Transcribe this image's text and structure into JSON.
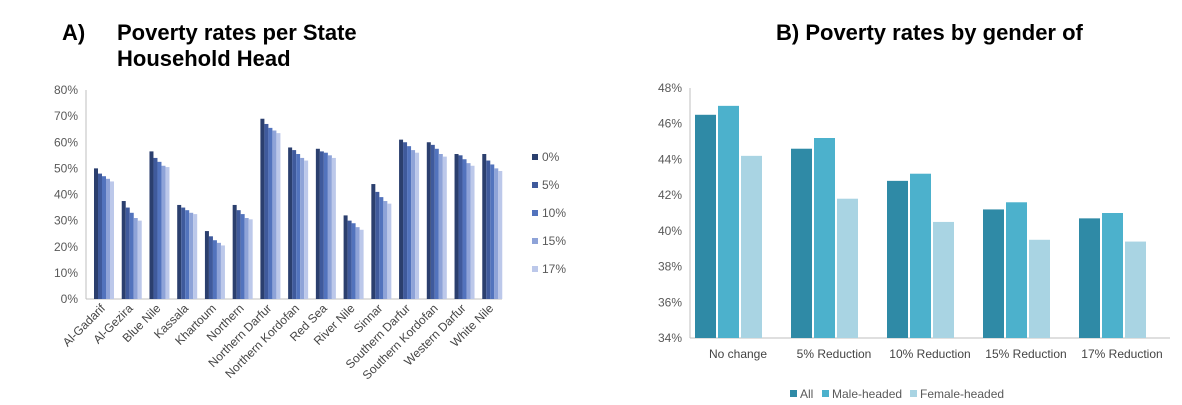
{
  "headings": {
    "a_label": "A)",
    "a_line1": "Poverty rates per State",
    "a_line2": "Household Head",
    "b_title": "B) Poverty rates by gender of"
  },
  "chart_data": [
    {
      "type": "bar",
      "categories": [
        "Al-Gadarif",
        "Al-Gezira",
        "Blue Nile",
        "Kassala",
        "Khartoum",
        "Northern",
        "Northern Darfur",
        "Northern Kordofan",
        "Red Sea",
        "River Nile",
        "Sinnar",
        "Southern Darfur",
        "Southern Kordofan",
        "Western Darfur",
        "White Nile"
      ],
      "series": [
        {
          "name": "0%",
          "color": "#2b3f6e",
          "values": [
            50,
            37.5,
            56.5,
            36,
            26,
            36,
            69,
            58,
            57.5,
            32,
            44,
            61,
            60,
            55.5,
            55.5
          ]
        },
        {
          "name": "5%",
          "color": "#3f5a9c",
          "values": [
            48,
            35,
            54,
            35,
            24,
            34,
            67,
            57,
            56.5,
            30,
            41,
            60,
            59,
            55,
            53
          ]
        },
        {
          "name": "10%",
          "color": "#5273bd",
          "values": [
            47,
            33,
            52.5,
            34,
            22.5,
            32.5,
            65.5,
            55.5,
            56,
            29,
            39,
            58.5,
            57.5,
            53.5,
            51.5
          ]
        },
        {
          "name": "15%",
          "color": "#8ea3d8",
          "values": [
            46,
            31,
            51,
            33,
            21.5,
            31,
            64.5,
            54,
            55,
            27.5,
            37.5,
            57,
            55.5,
            52,
            50
          ]
        },
        {
          "name": "17%",
          "color": "#bcc8ea",
          "values": [
            45,
            30,
            50.5,
            32.5,
            20.5,
            30.5,
            63.5,
            53,
            54,
            26.5,
            36.5,
            56,
            54.5,
            51,
            49
          ]
        }
      ],
      "yticks": [
        "0%",
        "10%",
        "20%",
        "30%",
        "40%",
        "50%",
        "60%",
        "70%",
        "80%"
      ],
      "ylim": [
        0,
        80
      ],
      "legend": "right",
      "grid": false
    },
    {
      "type": "bar",
      "categories": [
        "No change",
        "5% Reduction",
        "10% Reduction",
        "15% Reduction",
        "17% Reduction"
      ],
      "series": [
        {
          "name": "All",
          "color": "#2f8aa6",
          "values": [
            46.5,
            44.6,
            42.8,
            41.2,
            40.7
          ]
        },
        {
          "name": "Male-headed",
          "color": "#4cb1cc",
          "values": [
            47.0,
            45.2,
            43.2,
            41.6,
            41.0
          ]
        },
        {
          "name": "Female-headed",
          "color": "#a9d4e3",
          "values": [
            44.2,
            41.8,
            40.5,
            39.5,
            39.4
          ]
        }
      ],
      "yticks": [
        "34%",
        "36%",
        "38%",
        "40%",
        "42%",
        "44%",
        "46%",
        "48%"
      ],
      "ylim": [
        34,
        48
      ],
      "legend": "bottom",
      "grid": false
    }
  ]
}
